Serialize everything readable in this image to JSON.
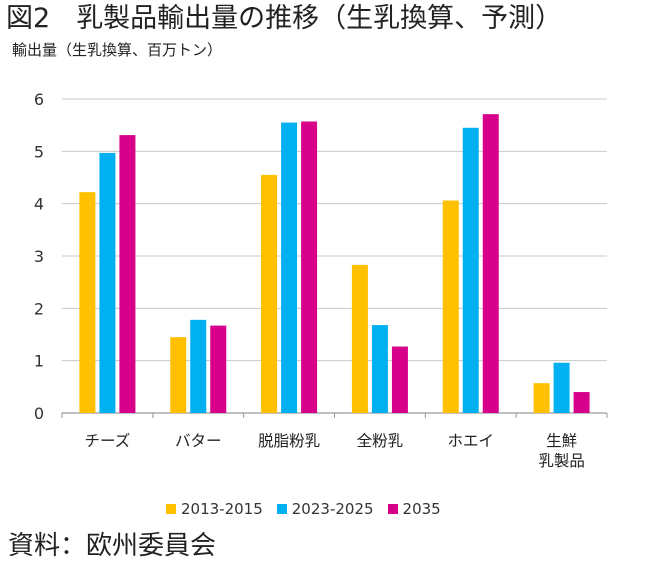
{
  "chart_data": {
    "type": "bar",
    "title_fig": "図2",
    "title": "乳製品輸出量の推移（生乳換算、予測）",
    "ylabel": "輸出量（生乳換算、百万トン）",
    "xlabel": "",
    "ylim": [
      0,
      6
    ],
    "yticks": [
      "0",
      "1",
      "2",
      "3",
      "4",
      "5",
      "6"
    ],
    "grid": true,
    "legend_position": "bottom",
    "categories": [
      [
        "チーズ"
      ],
      [
        "バター"
      ],
      [
        "脱脂粉乳"
      ],
      [
        "全粉乳"
      ],
      [
        "ホエイ"
      ],
      [
        "生鮮",
        "乳製品"
      ]
    ],
    "series": [
      {
        "name": "2013-2015",
        "color": "#FFC000",
        "values": [
          4.22,
          1.45,
          4.55,
          2.83,
          4.06,
          0.57
        ]
      },
      {
        "name": "2023-2025",
        "color": "#00B0F0",
        "values": [
          4.97,
          1.78,
          5.55,
          1.68,
          5.45,
          0.96
        ]
      },
      {
        "name": "2035",
        "color": "#D6008A",
        "values": [
          5.31,
          1.67,
          5.57,
          1.27,
          5.71,
          0.4
        ]
      }
    ]
  },
  "source": "資料：欧州委員会"
}
